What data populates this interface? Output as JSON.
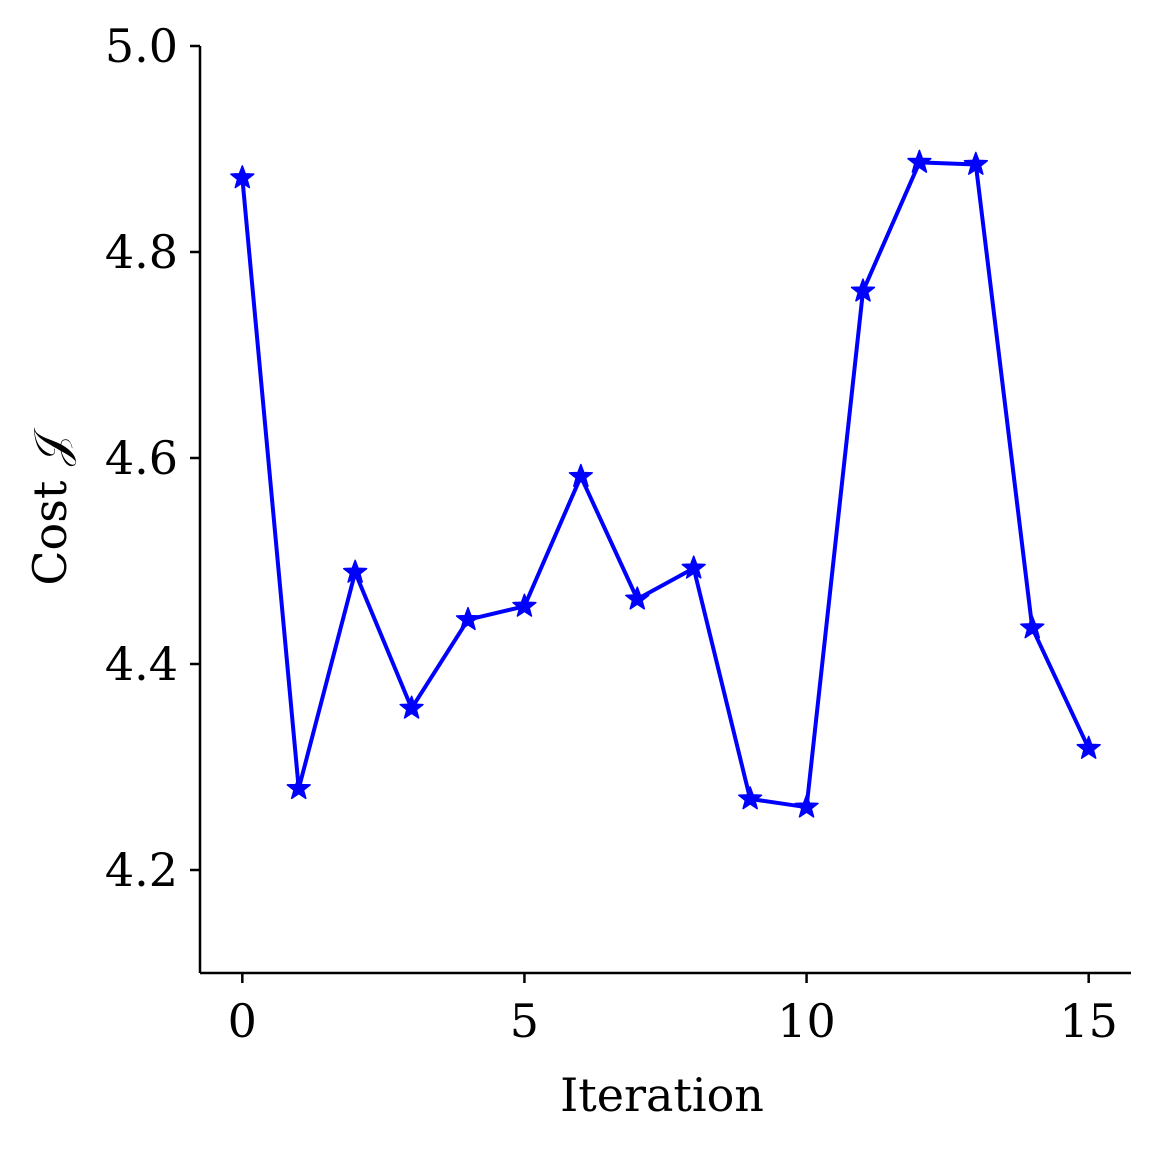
{
  "chart_data": {
    "type": "line",
    "title": "",
    "xlabel": "Iteration",
    "ylabel": "Cost 𝒥",
    "xlim": [
      -0.75,
      15.75
    ],
    "ylim": [
      4.1,
      5.0
    ],
    "xticks": [
      0,
      5,
      10,
      15
    ],
    "xtick_labels": [
      "0",
      "5",
      "10",
      "15"
    ],
    "yticks": [
      4.2,
      4.4,
      4.6,
      4.8,
      5.0
    ],
    "ytick_labels": [
      "4.2",
      "4.4",
      "4.6",
      "4.8",
      "5.0"
    ],
    "grid": false,
    "legend": "none",
    "series": [
      {
        "color": "#0000ff",
        "marker": "star",
        "x": [
          0,
          1,
          2,
          3,
          4,
          5,
          6,
          7,
          8,
          9,
          10,
          11,
          12,
          13,
          14,
          15
        ],
        "values": [
          4.872,
          4.279,
          4.489,
          4.357,
          4.443,
          4.456,
          4.582,
          4.463,
          4.493,
          4.269,
          4.261,
          4.762,
          4.887,
          4.885,
          4.435,
          4.318
        ]
      }
    ]
  }
}
